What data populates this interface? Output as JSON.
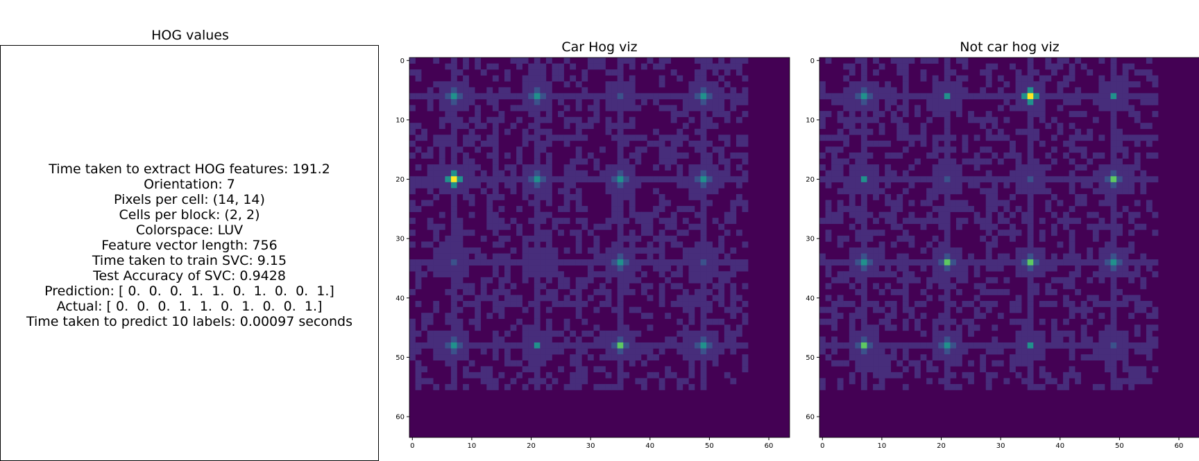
{
  "titles": {
    "left": "HOG values",
    "car": "Car Hog viz",
    "not_car": "Not car hog viz"
  },
  "info_lines": [
    "Time taken to extract HOG features: 191.2",
    "Orientation: 7",
    "Pixels per cell: (14, 14)",
    "Cells per block: (2, 2)",
    "Colorspace: LUV",
    "Feature vector length: 756",
    "Time taken to train SVC: 9.15",
    "Test Accuracy of SVC: 0.9428",
    "Prediction: [ 0.  0.  0.  1.  1.  0.  1.  0.  0.  1.]",
    "Actual: [ 0.  0.  0.  1.  1.  0.  1.  0.  0.  1.]",
    "Time taken to predict 10 labels: 0.00097 seconds"
  ],
  "colors": {
    "background": "#440154",
    "low": "#472d7b",
    "mid": "#3b528b",
    "teal": "#21918c",
    "green": "#5ec962",
    "yellow": "#fde725"
  },
  "chart_data": [
    {
      "type": "heatmap",
      "title": "Car Hog viz",
      "xlim": [
        -0.5,
        63.5
      ],
      "ylim": [
        63.5,
        -0.5
      ],
      "xticks": [
        0,
        10,
        20,
        30,
        40,
        50,
        60
      ],
      "yticks": [
        0,
        10,
        20,
        30,
        40,
        50,
        60
      ],
      "colormap": "viridis",
      "cell_centers_x": [
        7,
        21,
        35,
        49
      ],
      "cell_centers_y": [
        6,
        20,
        34,
        48
      ],
      "center_intensity": [
        [
          0.55,
          0.55,
          0.45,
          0.55
        ],
        [
          1.0,
          0.65,
          0.6,
          0.55
        ],
        [
          0.4,
          0.2,
          0.55,
          0.3
        ],
        [
          0.55,
          0.5,
          0.8,
          0.55
        ]
      ]
    },
    {
      "type": "heatmap",
      "title": "Not car hog viz",
      "xlim": [
        -0.5,
        63.5
      ],
      "ylim": [
        63.5,
        -0.5
      ],
      "xticks": [
        0,
        10,
        20,
        30,
        40,
        50,
        60
      ],
      "yticks": [
        0,
        10,
        20,
        30,
        40,
        50,
        60
      ],
      "colormap": "viridis",
      "cell_centers_x": [
        7,
        21,
        35,
        49
      ],
      "cell_centers_y": [
        6,
        20,
        34,
        48
      ],
      "center_intensity": [
        [
          0.55,
          0.5,
          1.0,
          0.5
        ],
        [
          0.5,
          0.45,
          0.45,
          0.7
        ],
        [
          0.55,
          0.7,
          0.8,
          0.55
        ],
        [
          0.75,
          0.65,
          0.5,
          0.4
        ]
      ]
    }
  ]
}
